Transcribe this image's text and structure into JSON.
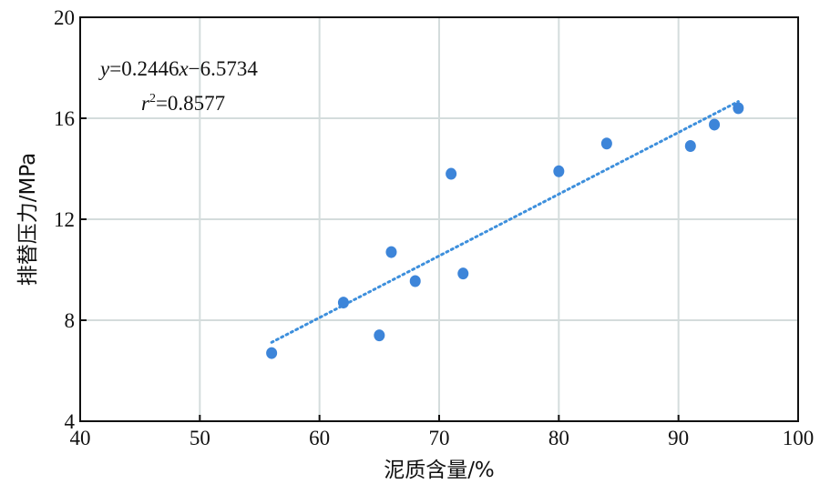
{
  "chart_data": {
    "type": "scatter",
    "xlabel": "泥质含量/%",
    "ylabel": "排替压力/MPa",
    "xlim": [
      40,
      100
    ],
    "ylim": [
      4,
      20
    ],
    "xticks": [
      "40",
      "50",
      "60",
      "70",
      "80",
      "90",
      "100"
    ],
    "yticks": [
      "4",
      "8",
      "12",
      "16",
      "20"
    ],
    "grid": true,
    "colors": {
      "points": "#3d85d9",
      "trendline": "#3d8fdc",
      "grid": "#d4dcdc"
    },
    "points": [
      {
        "x": 56,
        "y": 6.7
      },
      {
        "x": 62,
        "y": 8.7
      },
      {
        "x": 65,
        "y": 7.4
      },
      {
        "x": 66,
        "y": 10.7
      },
      {
        "x": 68,
        "y": 9.55
      },
      {
        "x": 71,
        "y": 13.8
      },
      {
        "x": 72,
        "y": 9.85
      },
      {
        "x": 80,
        "y": 13.9
      },
      {
        "x": 84,
        "y": 15.0
      },
      {
        "x": 91,
        "y": 14.9
      },
      {
        "x": 93,
        "y": 15.75
      },
      {
        "x": 95,
        "y": 16.4
      }
    ],
    "trendline": {
      "type": "linear",
      "slope": 0.2446,
      "intercept": -6.5734,
      "x_range": [
        56,
        95
      ],
      "equation_label": "y=0.2446x−6.5734",
      "equation_var_y": "y",
      "equation_mid": "=0.2446",
      "equation_var_x": "x",
      "equation_tail": "−6.5734",
      "r2_label": "r²=0.8577",
      "r2_var": "r",
      "r2_sup": "2",
      "r2_value": "=0.8577"
    }
  }
}
